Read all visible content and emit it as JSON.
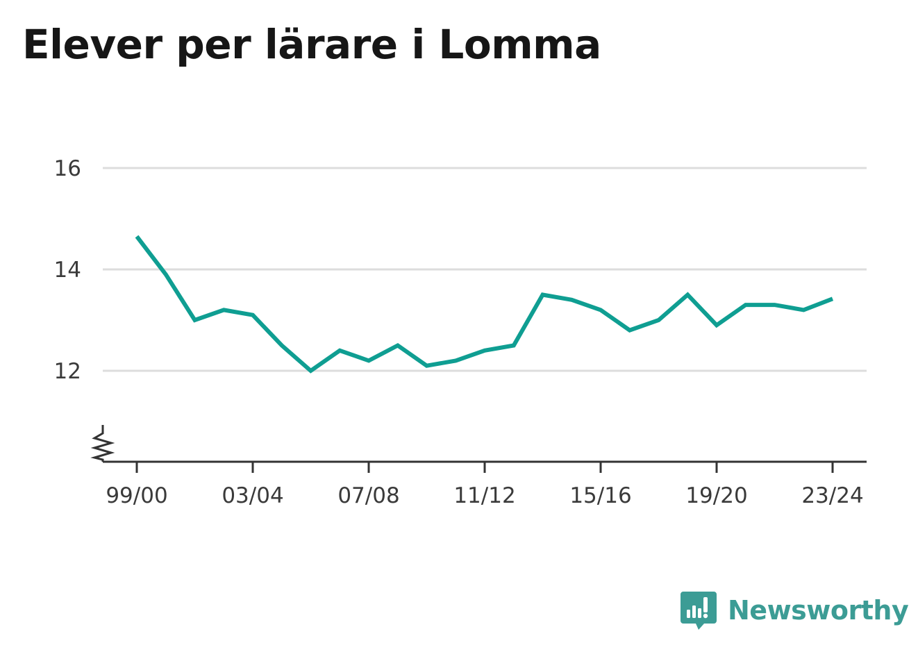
{
  "title": "Elever per lärare i Lomma",
  "brand": "Newsworthy",
  "colors": {
    "line": "#0f9e92",
    "brand": "#3c9c95",
    "grid": "#dddddd",
    "axis": "#333333"
  },
  "chart_data": {
    "type": "line",
    "title": "Elever per lärare i Lomma",
    "xlabel": "",
    "ylabel": "",
    "categories": [
      "99/00",
      "00/01",
      "01/02",
      "02/03",
      "03/04",
      "04/05",
      "05/06",
      "06/07",
      "07/08",
      "08/09",
      "09/10",
      "10/11",
      "11/12",
      "12/13",
      "13/14",
      "14/15",
      "15/16",
      "16/17",
      "17/18",
      "18/19",
      "19/20",
      "20/21",
      "21/22",
      "22/23",
      "23/24"
    ],
    "tick_labels": [
      "99/00",
      "03/04",
      "07/08",
      "11/12",
      "15/16",
      "19/20",
      "23/24"
    ],
    "values": [
      14.65,
      13.9,
      13.0,
      13.2,
      13.1,
      12.5,
      12.0,
      12.4,
      12.2,
      12.5,
      12.1,
      12.2,
      12.4,
      12.5,
      13.5,
      13.4,
      13.2,
      12.8,
      13.0,
      13.5,
      12.9,
      13.3,
      13.3,
      13.2,
      13.42
    ],
    "y_ticks": [
      "12",
      "14",
      "16"
    ],
    "ylim": [
      10.2,
      16
    ],
    "axis_break": true,
    "grid": true,
    "legend": "none"
  }
}
